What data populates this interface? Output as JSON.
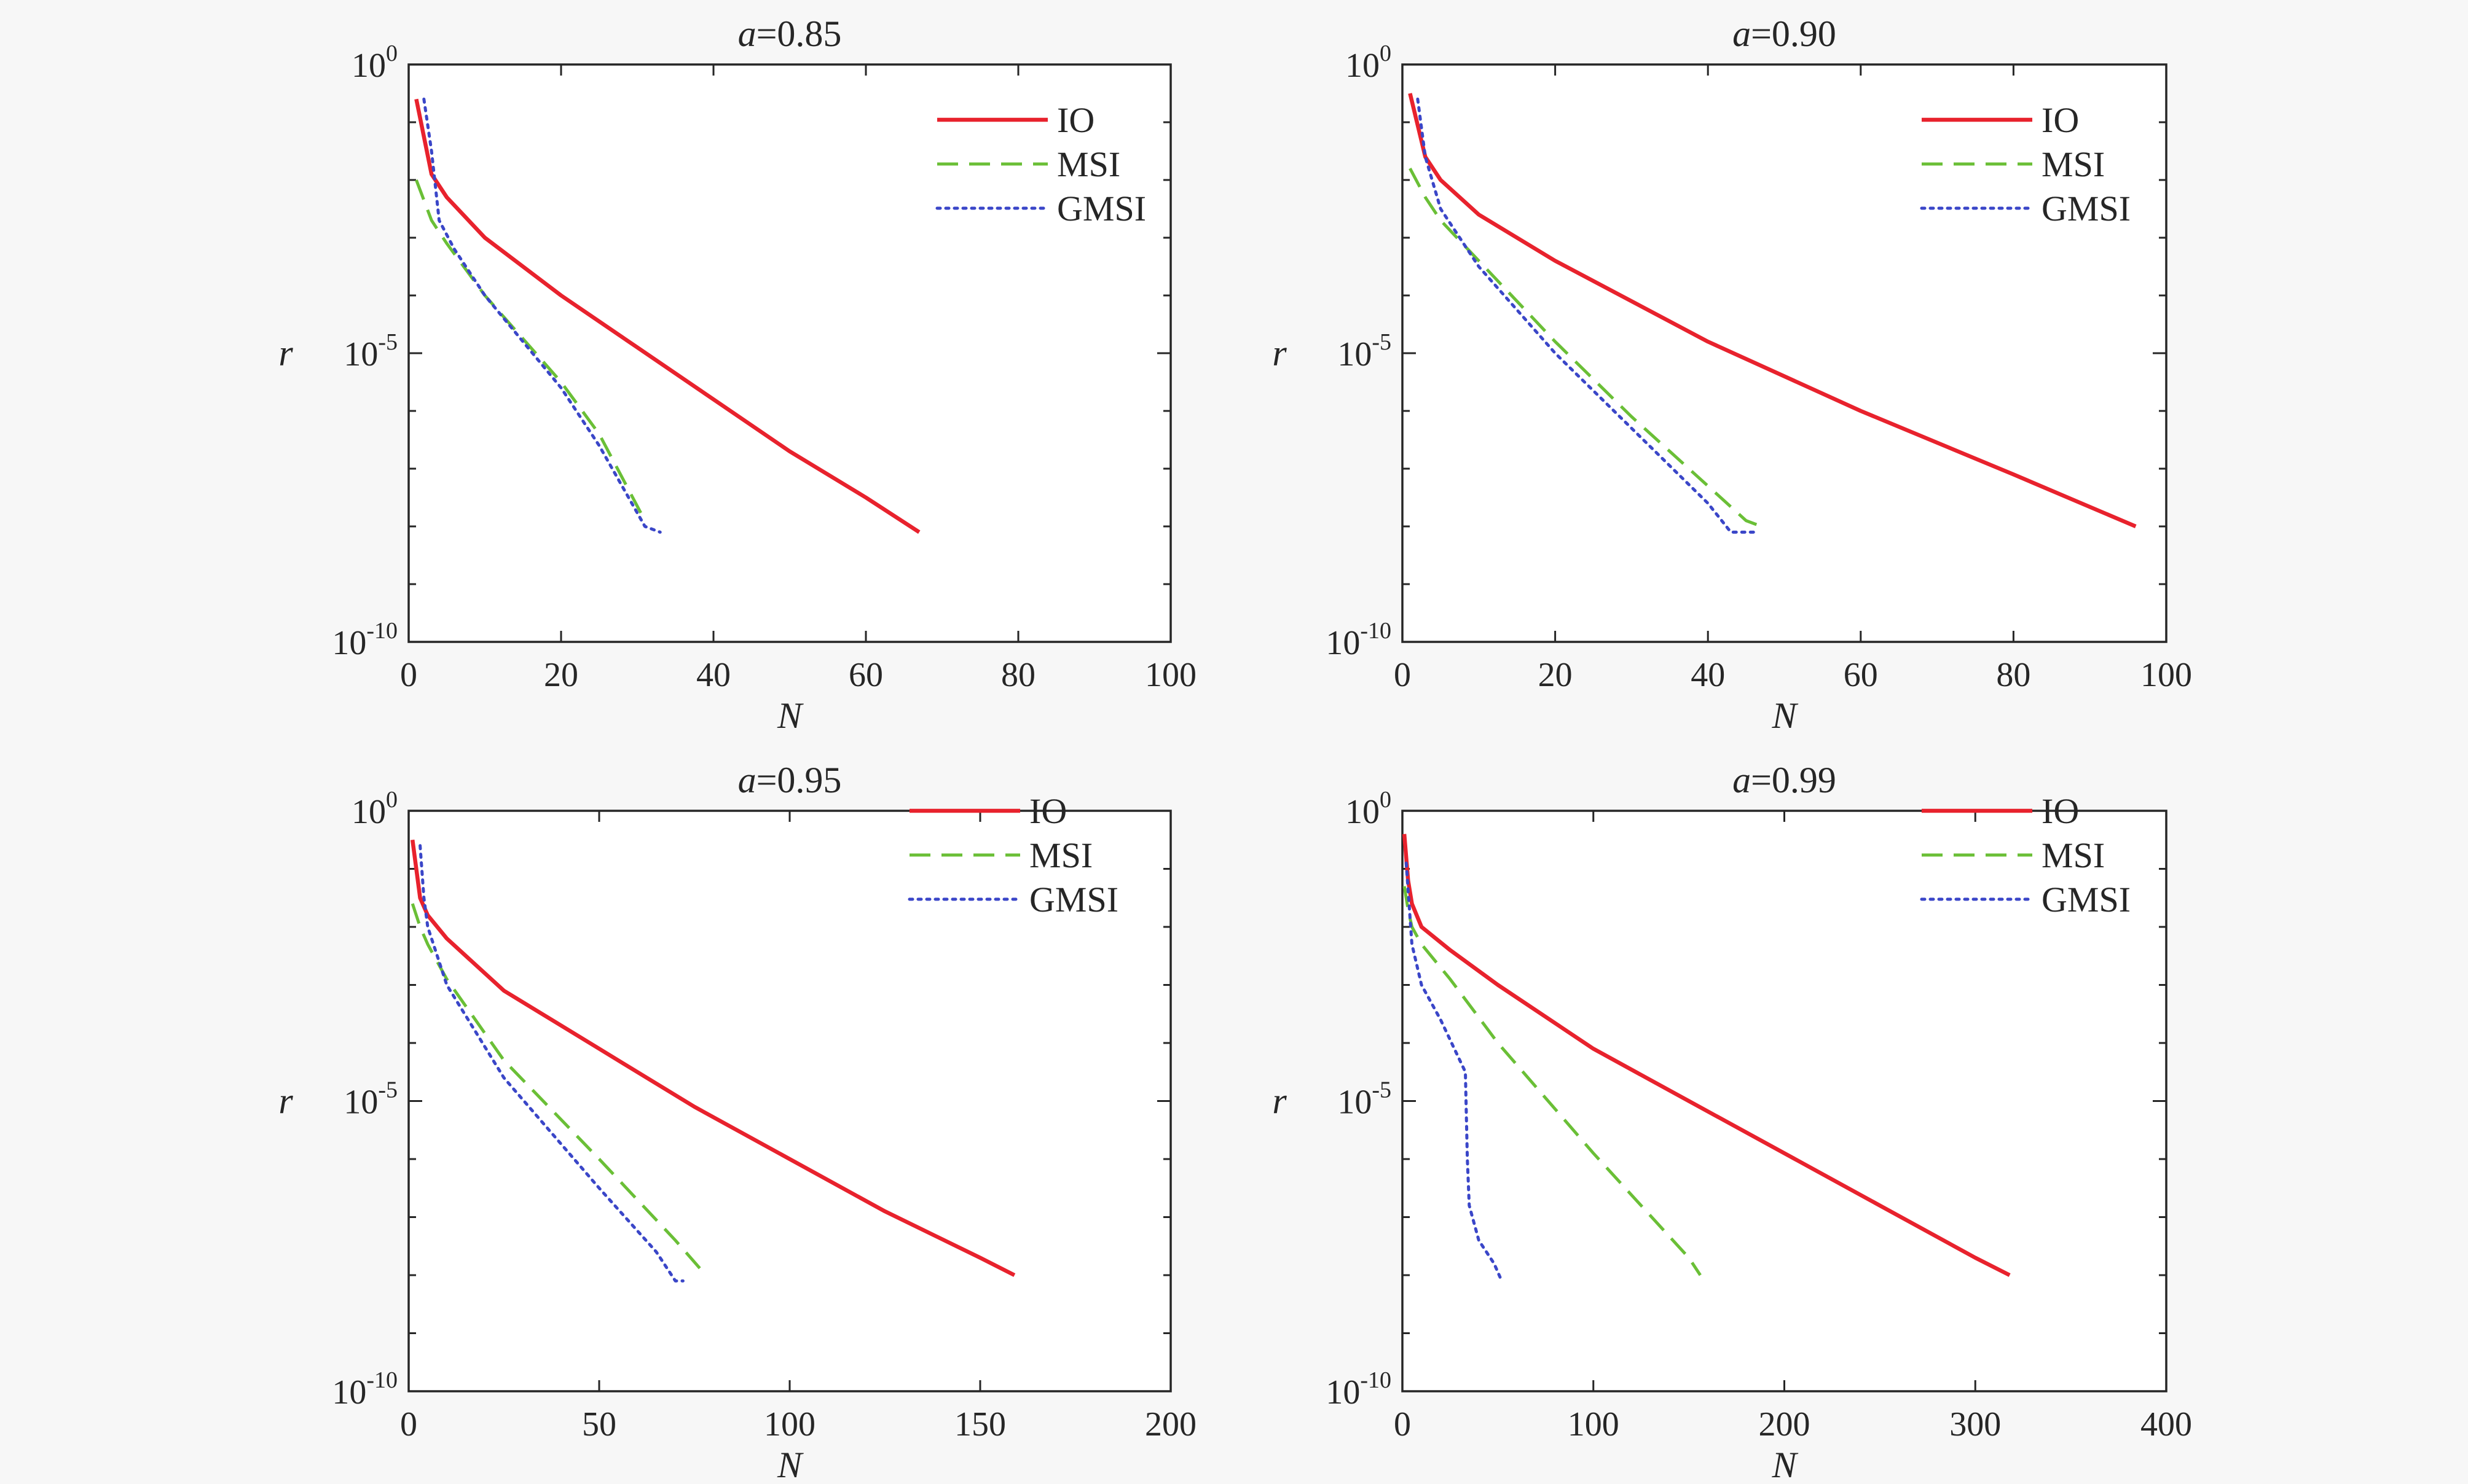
{
  "colors": {
    "IO": "#e8222d",
    "MSI": "#6abf36",
    "GMSI": "#3a46c8"
  },
  "chart_data": [
    {
      "type": "line",
      "title_var": "a",
      "title_value": "=0.85",
      "xlabel": "N",
      "ylabel": "r",
      "yscale": "log",
      "xlim": [
        0,
        100
      ],
      "ylim_exp": [
        -10,
        0
      ],
      "xticks": [
        "0",
        "20",
        "40",
        "60",
        "80",
        "100"
      ],
      "yticks": [
        {
          "base": "10",
          "exp": "0"
        },
        {
          "base": "10",
          "exp": "-5"
        },
        {
          "base": "10",
          "exp": "-10"
        }
      ],
      "legend_position": "top-right",
      "series": [
        {
          "name": "IO",
          "style": "solid",
          "points": [
            [
              1,
              -0.6
            ],
            [
              3,
              -1.9
            ],
            [
              5,
              -2.3
            ],
            [
              10,
              -3.0
            ],
            [
              20,
              -4.0
            ],
            [
              30,
              -4.9
            ],
            [
              40,
              -5.8
            ],
            [
              50,
              -6.7
            ],
            [
              60,
              -7.5
            ],
            [
              67,
              -8.1
            ]
          ]
        },
        {
          "name": "MSI",
          "style": "dashed",
          "points": [
            [
              1,
              -2.0
            ],
            [
              3,
              -2.7
            ],
            [
              5,
              -3.1
            ],
            [
              10,
              -4.0
            ],
            [
              20,
              -5.5
            ],
            [
              25,
              -6.4
            ],
            [
              31,
              -7.9
            ]
          ]
        },
        {
          "name": "GMSI",
          "style": "dotted",
          "points": [
            [
              2,
              -0.6
            ],
            [
              3,
              -1.5
            ],
            [
              4,
              -2.7
            ],
            [
              6,
              -3.2
            ],
            [
              10,
              -4.0
            ],
            [
              20,
              -5.6
            ],
            [
              25,
              -6.6
            ],
            [
              31,
              -8.0
            ],
            [
              33,
              -8.1
            ]
          ]
        }
      ]
    },
    {
      "type": "line",
      "title_var": "a",
      "title_value": "=0.90",
      "xlabel": "N",
      "ylabel": "r",
      "yscale": "log",
      "xlim": [
        0,
        100
      ],
      "ylim_exp": [
        -10,
        0
      ],
      "xticks": [
        "0",
        "20",
        "40",
        "60",
        "80",
        "100"
      ],
      "yticks": [
        {
          "base": "10",
          "exp": "0"
        },
        {
          "base": "10",
          "exp": "-5"
        },
        {
          "base": "10",
          "exp": "-10"
        }
      ],
      "legend_position": "top-right",
      "series": [
        {
          "name": "IO",
          "style": "solid",
          "points": [
            [
              1,
              -0.5
            ],
            [
              3,
              -1.6
            ],
            [
              5,
              -2.0
            ],
            [
              10,
              -2.6
            ],
            [
              20,
              -3.4
            ],
            [
              40,
              -4.8
            ],
            [
              60,
              -6.0
            ],
            [
              80,
              -7.1
            ],
            [
              96,
              -8.0
            ]
          ]
        },
        {
          "name": "MSI",
          "style": "dashed",
          "points": [
            [
              1,
              -1.8
            ],
            [
              3,
              -2.3
            ],
            [
              5,
              -2.7
            ],
            [
              10,
              -3.4
            ],
            [
              20,
              -4.8
            ],
            [
              30,
              -6.1
            ],
            [
              40,
              -7.3
            ],
            [
              45,
              -7.9
            ],
            [
              47,
              -8.0
            ]
          ]
        },
        {
          "name": "GMSI",
          "style": "dotted",
          "points": [
            [
              2,
              -0.6
            ],
            [
              3,
              -1.6
            ],
            [
              5,
              -2.5
            ],
            [
              10,
              -3.5
            ],
            [
              20,
              -5.0
            ],
            [
              30,
              -6.3
            ],
            [
              40,
              -7.6
            ],
            [
              43,
              -8.1
            ],
            [
              46,
              -8.1
            ]
          ]
        }
      ]
    },
    {
      "type": "line",
      "title_var": "a",
      "title_value": "=0.95",
      "xlabel": "N",
      "ylabel": "r",
      "yscale": "log",
      "xlim": [
        0,
        200
      ],
      "ylim_exp": [
        -10,
        0
      ],
      "xticks": [
        "0",
        "50",
        "100",
        "150",
        "200"
      ],
      "yticks": [
        {
          "base": "10",
          "exp": "0"
        },
        {
          "base": "10",
          "exp": "-5"
        },
        {
          "base": "10",
          "exp": "-10"
        }
      ],
      "legend_position": "top-right",
      "series": [
        {
          "name": "IO",
          "style": "solid",
          "points": [
            [
              1,
              -0.5
            ],
            [
              3,
              -1.5
            ],
            [
              5,
              -1.8
            ],
            [
              10,
              -2.2
            ],
            [
              25,
              -3.1
            ],
            [
              50,
              -4.1
            ],
            [
              75,
              -5.1
            ],
            [
              100,
              -6.0
            ],
            [
              125,
              -6.9
            ],
            [
              150,
              -7.7
            ],
            [
              159,
              -8.0
            ]
          ]
        },
        {
          "name": "MSI",
          "style": "dashed",
          "points": [
            [
              1,
              -1.6
            ],
            [
              3,
              -2.0
            ],
            [
              5,
              -2.3
            ],
            [
              10,
              -2.9
            ],
            [
              25,
              -4.3
            ],
            [
              50,
              -6.0
            ],
            [
              70,
              -7.4
            ],
            [
              78,
              -8.0
            ]
          ]
        },
        {
          "name": "GMSI",
          "style": "dotted",
          "points": [
            [
              3,
              -0.6
            ],
            [
              4,
              -1.5
            ],
            [
              5,
              -2.0
            ],
            [
              10,
              -3.0
            ],
            [
              25,
              -4.6
            ],
            [
              50,
              -6.5
            ],
            [
              65,
              -7.6
            ],
            [
              70,
              -8.1
            ],
            [
              72,
              -8.1
            ]
          ]
        }
      ]
    },
    {
      "type": "line",
      "title_var": "a",
      "title_value": "=0.99",
      "xlabel": "N",
      "ylabel": "r",
      "yscale": "log",
      "xlim": [
        0,
        400
      ],
      "ylim_exp": [
        -10,
        0
      ],
      "xticks": [
        "0",
        "100",
        "200",
        "300",
        "400"
      ],
      "yticks": [
        {
          "base": "10",
          "exp": "0"
        },
        {
          "base": "10",
          "exp": "-5"
        },
        {
          "base": "10",
          "exp": "-10"
        }
      ],
      "legend_position": "top-right",
      "series": [
        {
          "name": "IO",
          "style": "solid",
          "points": [
            [
              1,
              -0.4
            ],
            [
              3,
              -1.2
            ],
            [
              5,
              -1.6
            ],
            [
              10,
              -2.0
            ],
            [
              25,
              -2.4
            ],
            [
              50,
              -3.0
            ],
            [
              100,
              -4.1
            ],
            [
              150,
              -5.0
            ],
            [
              200,
              -5.9
            ],
            [
              250,
              -6.8
            ],
            [
              300,
              -7.7
            ],
            [
              318,
              -8.0
            ]
          ]
        },
        {
          "name": "MSI",
          "style": "dashed",
          "points": [
            [
              1,
              -1.3
            ],
            [
              3,
              -1.7
            ],
            [
              5,
              -2.0
            ],
            [
              10,
              -2.3
            ],
            [
              25,
              -2.9
            ],
            [
              50,
              -4.0
            ],
            [
              100,
              -5.9
            ],
            [
              150,
              -7.7
            ],
            [
              156,
              -8.0
            ]
          ]
        },
        {
          "name": "GMSI",
          "style": "dotted",
          "points": [
            [
              2,
              -0.9
            ],
            [
              5,
              -2.3
            ],
            [
              10,
              -3.0
            ],
            [
              20,
              -3.6
            ],
            [
              33,
              -4.5
            ],
            [
              34,
              -6.0
            ],
            [
              35,
              -6.8
            ],
            [
              40,
              -7.4
            ],
            [
              48,
              -7.8
            ],
            [
              52,
              -8.1
            ]
          ]
        }
      ]
    }
  ]
}
